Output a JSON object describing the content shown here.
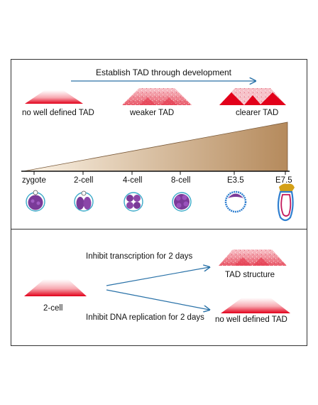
{
  "top": {
    "arrow_label": "Establish TAD through development",
    "tad_labels": [
      "no well defined TAD",
      "weaker TAD",
      "clearer TAD"
    ],
    "stages": [
      "zygote",
      "2-cell",
      "4-cell",
      "8-cell",
      "E3.5",
      "E7.5"
    ],
    "gradient_colors": [
      "#fbf3e6",
      "#b58a5c"
    ]
  },
  "bottom": {
    "start_label": "2-cell",
    "inhibit_transcription": "Inhibit transcription for 2 days",
    "inhibit_replication": "Inhibit DNA replication for 2 days",
    "result_transcription": "TAD structure",
    "result_replication": "no well defined TAD"
  },
  "colors": {
    "arrow": "#2a72a8",
    "tad_red": "#e2001a",
    "embryo_purple": "#7a3a98",
    "embryo_outline": "#3aa9c8"
  }
}
